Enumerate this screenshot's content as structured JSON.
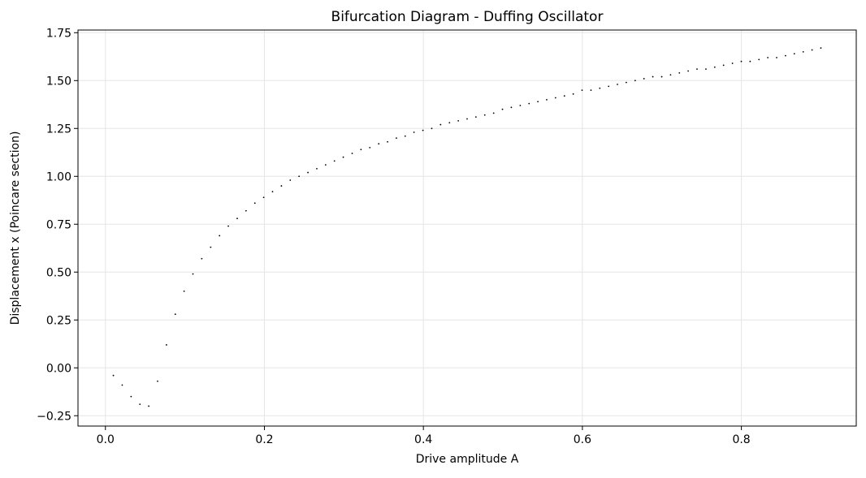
{
  "chart_data": {
    "type": "scatter",
    "title": "Bifurcation Diagram - Duffing Oscillator",
    "x_label": "Drive amplitude A",
    "y_label": "Displacement x (Poincare section)",
    "color": "#000000",
    "grid": true,
    "x": [
      0.01,
      0.0211,
      0.0323,
      0.0434,
      0.0545,
      0.0656,
      0.0768,
      0.0879,
      0.099,
      0.1101,
      0.1212,
      0.1324,
      0.1435,
      0.1546,
      0.1658,
      0.1769,
      0.188,
      0.1991,
      0.2102,
      0.2214,
      0.2325,
      0.2436,
      0.2548,
      0.2659,
      0.277,
      0.2881,
      0.2992,
      0.3104,
      0.3215,
      0.3326,
      0.3438,
      0.3549,
      0.366,
      0.3771,
      0.3882,
      0.3994,
      0.4105,
      0.4216,
      0.4328,
      0.4439,
      0.455,
      0.4661,
      0.4772,
      0.4884,
      0.4995,
      0.5106,
      0.5218,
      0.5329,
      0.544,
      0.5551,
      0.5662,
      0.5774,
      0.5885,
      0.5996,
      0.6108,
      0.6219,
      0.633,
      0.6441,
      0.6552,
      0.6664,
      0.6775,
      0.6886,
      0.6998,
      0.7109,
      0.722,
      0.7331,
      0.7442,
      0.7554,
      0.7665,
      0.7776,
      0.7888,
      0.7999,
      0.811,
      0.8221,
      0.8332,
      0.8444,
      0.8555,
      0.8666,
      0.8778,
      0.8889,
      0.9
    ],
    "values": [
      -0.04,
      -0.09,
      -0.15,
      -0.19,
      -0.2,
      -0.07,
      0.12,
      0.28,
      0.4,
      0.49,
      0.57,
      0.63,
      0.69,
      0.74,
      0.78,
      0.82,
      0.86,
      0.89,
      0.92,
      0.95,
      0.98,
      1.0,
      1.02,
      1.04,
      1.06,
      1.08,
      1.1,
      1.12,
      1.14,
      1.15,
      1.17,
      1.18,
      1.2,
      1.21,
      1.23,
      1.24,
      1.25,
      1.27,
      1.28,
      1.29,
      1.3,
      1.31,
      1.32,
      1.33,
      1.35,
      1.36,
      1.37,
      1.38,
      1.39,
      1.4,
      1.41,
      1.42,
      1.43,
      1.45,
      1.45,
      1.46,
      1.47,
      1.48,
      1.49,
      1.5,
      1.51,
      1.52,
      1.52,
      1.53,
      1.54,
      1.55,
      1.56,
      1.56,
      1.57,
      1.58,
      1.59,
      1.6,
      1.6,
      1.61,
      1.62,
      1.62,
      1.63,
      1.64,
      1.65,
      1.66,
      1.67
    ],
    "xlim": [
      -0.0345,
      0.9445
    ],
    "ylim": [
      -0.304,
      1.764
    ],
    "xticks": [
      {
        "value": 0,
        "label": "0.0"
      },
      {
        "value": 0.2,
        "label": "0.2"
      },
      {
        "value": 0.4,
        "label": "0.4"
      },
      {
        "value": 0.6,
        "label": "0.6"
      },
      {
        "value": 0.8,
        "label": "0.8"
      }
    ],
    "yticks": [
      {
        "value": -0.25,
        "label": "−0.25"
      },
      {
        "value": 0,
        "label": "0.00"
      },
      {
        "value": 0.25,
        "label": "0.25"
      },
      {
        "value": 0.5,
        "label": "0.50"
      },
      {
        "value": 0.75,
        "label": "0.75"
      },
      {
        "value": 1,
        "label": "1.00"
      },
      {
        "value": 1.25,
        "label": "1.25"
      },
      {
        "value": 1.5,
        "label": "1.50"
      },
      {
        "value": 1.75,
        "label": "1.75"
      }
    ]
  }
}
